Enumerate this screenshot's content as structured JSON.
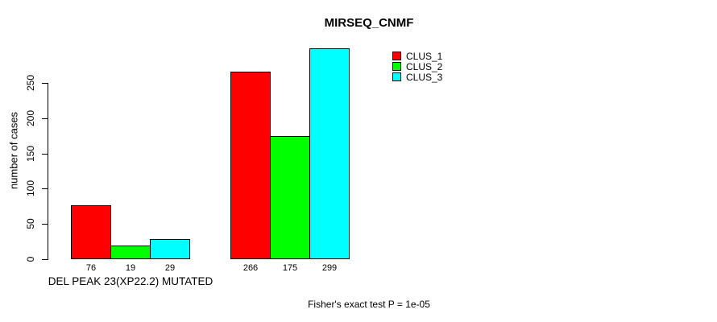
{
  "chart_data": {
    "type": "bar",
    "title": "MIRSEQ_CNMF",
    "ylabel": "number of cases",
    "xlabel": "",
    "axis": {
      "ymin": 0,
      "ymax": 250,
      "ticks": [
        0,
        50,
        100,
        150,
        200,
        250
      ]
    },
    "grid": "off",
    "legend_position": "top-right",
    "series_names": [
      "CLUS_1",
      "CLUS_2",
      "CLUS_3"
    ],
    "colors": [
      "#ff0000",
      "#00ff00",
      "#00ffff"
    ],
    "groups": [
      {
        "label": "DEL PEAK 23(XP22.2) MUTATED",
        "values": [
          76,
          19,
          29
        ]
      },
      {
        "label": "",
        "values": [
          266,
          175,
          299
        ]
      }
    ],
    "bar_value_labels": [
      [
        "76",
        "19",
        "29"
      ],
      [
        "266",
        "175",
        "299"
      ]
    ],
    "annotation": "Fisher's exact test P = 1e-05"
  }
}
